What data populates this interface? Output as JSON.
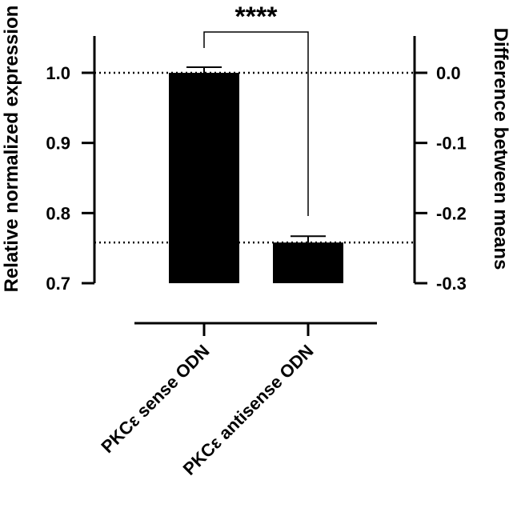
{
  "chart_data": {
    "type": "bar",
    "categories": [
      "PKCε sense ODN",
      "PKCε antisense ODN"
    ],
    "values": [
      1.0,
      0.758
    ],
    "error": [
      0.008,
      0.009
    ],
    "ylabel": "Relative normalized expression",
    "ylim": [
      0.7,
      1.05
    ],
    "yticks": [
      0.7,
      0.8,
      0.9,
      1.0
    ],
    "ytick_labels": [
      "0.7",
      "0.8",
      "0.9",
      "1.0"
    ],
    "y2label": "Difference between means",
    "y2ticks": [
      -0.3,
      -0.2,
      -0.1,
      0.0
    ],
    "y2tick_labels": [
      "-0.3",
      "-0.2",
      "-0.1",
      "0.0"
    ],
    "reference_lines": [
      1.0,
      0.758
    ],
    "significance": "****",
    "bar_color": "#000000"
  }
}
